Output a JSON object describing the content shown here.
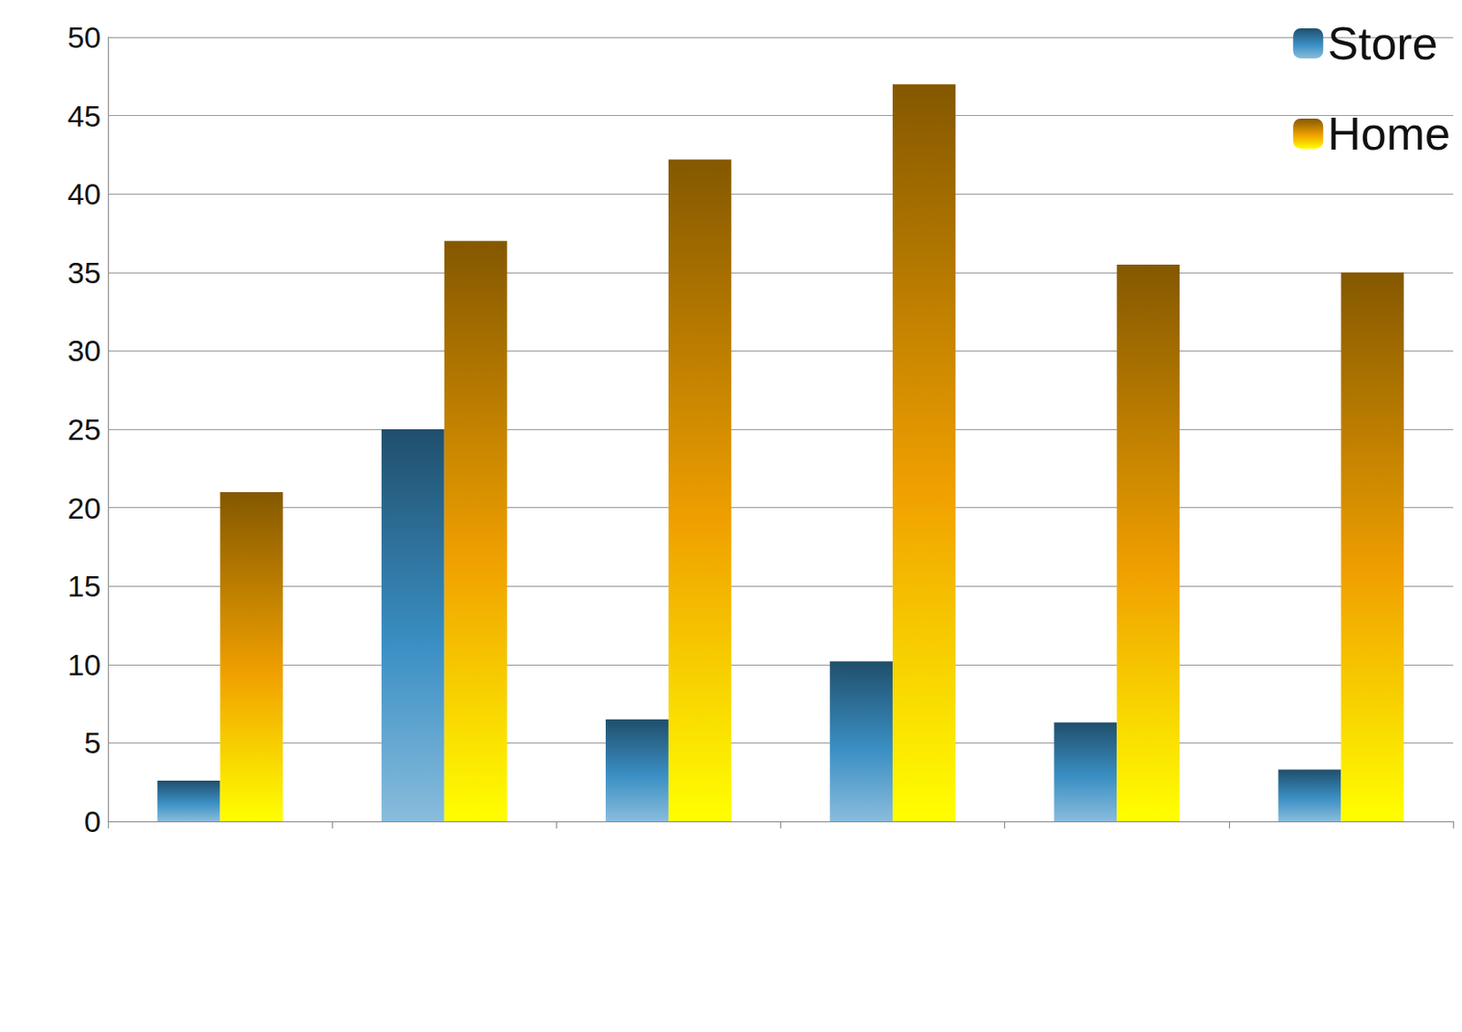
{
  "chart_data": {
    "type": "bar",
    "categories": [
      null,
      null,
      null,
      null,
      null,
      null
    ],
    "series": [
      {
        "name": "Store",
        "color": "#3a8fc4",
        "values": [
          2.6,
          25,
          6.5,
          10.2,
          6.3,
          3.3
        ]
      },
      {
        "name": "Home",
        "color": "#f0a000",
        "values": [
          21,
          37,
          42.2,
          47,
          35.5,
          35
        ]
      }
    ],
    "ylim": [
      0,
      50
    ],
    "yticks": [
      0,
      5,
      10,
      15,
      20,
      25,
      30,
      35,
      40,
      45,
      50
    ],
    "grid": true,
    "legend": "top-right"
  }
}
